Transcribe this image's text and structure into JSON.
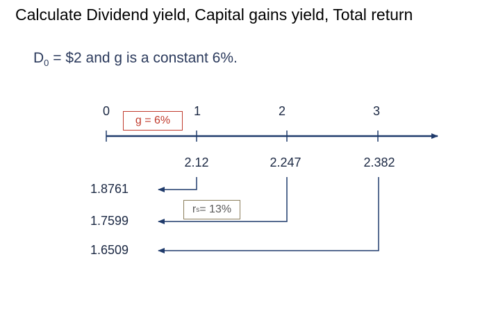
{
  "title": "Calculate Dividend yield, Capital gains yield, Total return",
  "given": {
    "prefix": "D",
    "subscript": "0",
    "suffix": " = $2 and g is a constant 6%."
  },
  "timeline": {
    "periods": [
      "0",
      "1",
      "2",
      "3"
    ],
    "dividends": [
      "2.12",
      "2.247",
      "2.382"
    ],
    "present_values": [
      "1.8761",
      "1.7599",
      "1.6509"
    ]
  },
  "growth_label": "g = 6%",
  "rate_label": {
    "prefix": "r",
    "subscript": "s",
    "suffix": " = 13%"
  },
  "colors": {
    "axis": "#1f3a6b",
    "growth_box": "#c0392b",
    "rate_box": "#8a7d5a"
  }
}
